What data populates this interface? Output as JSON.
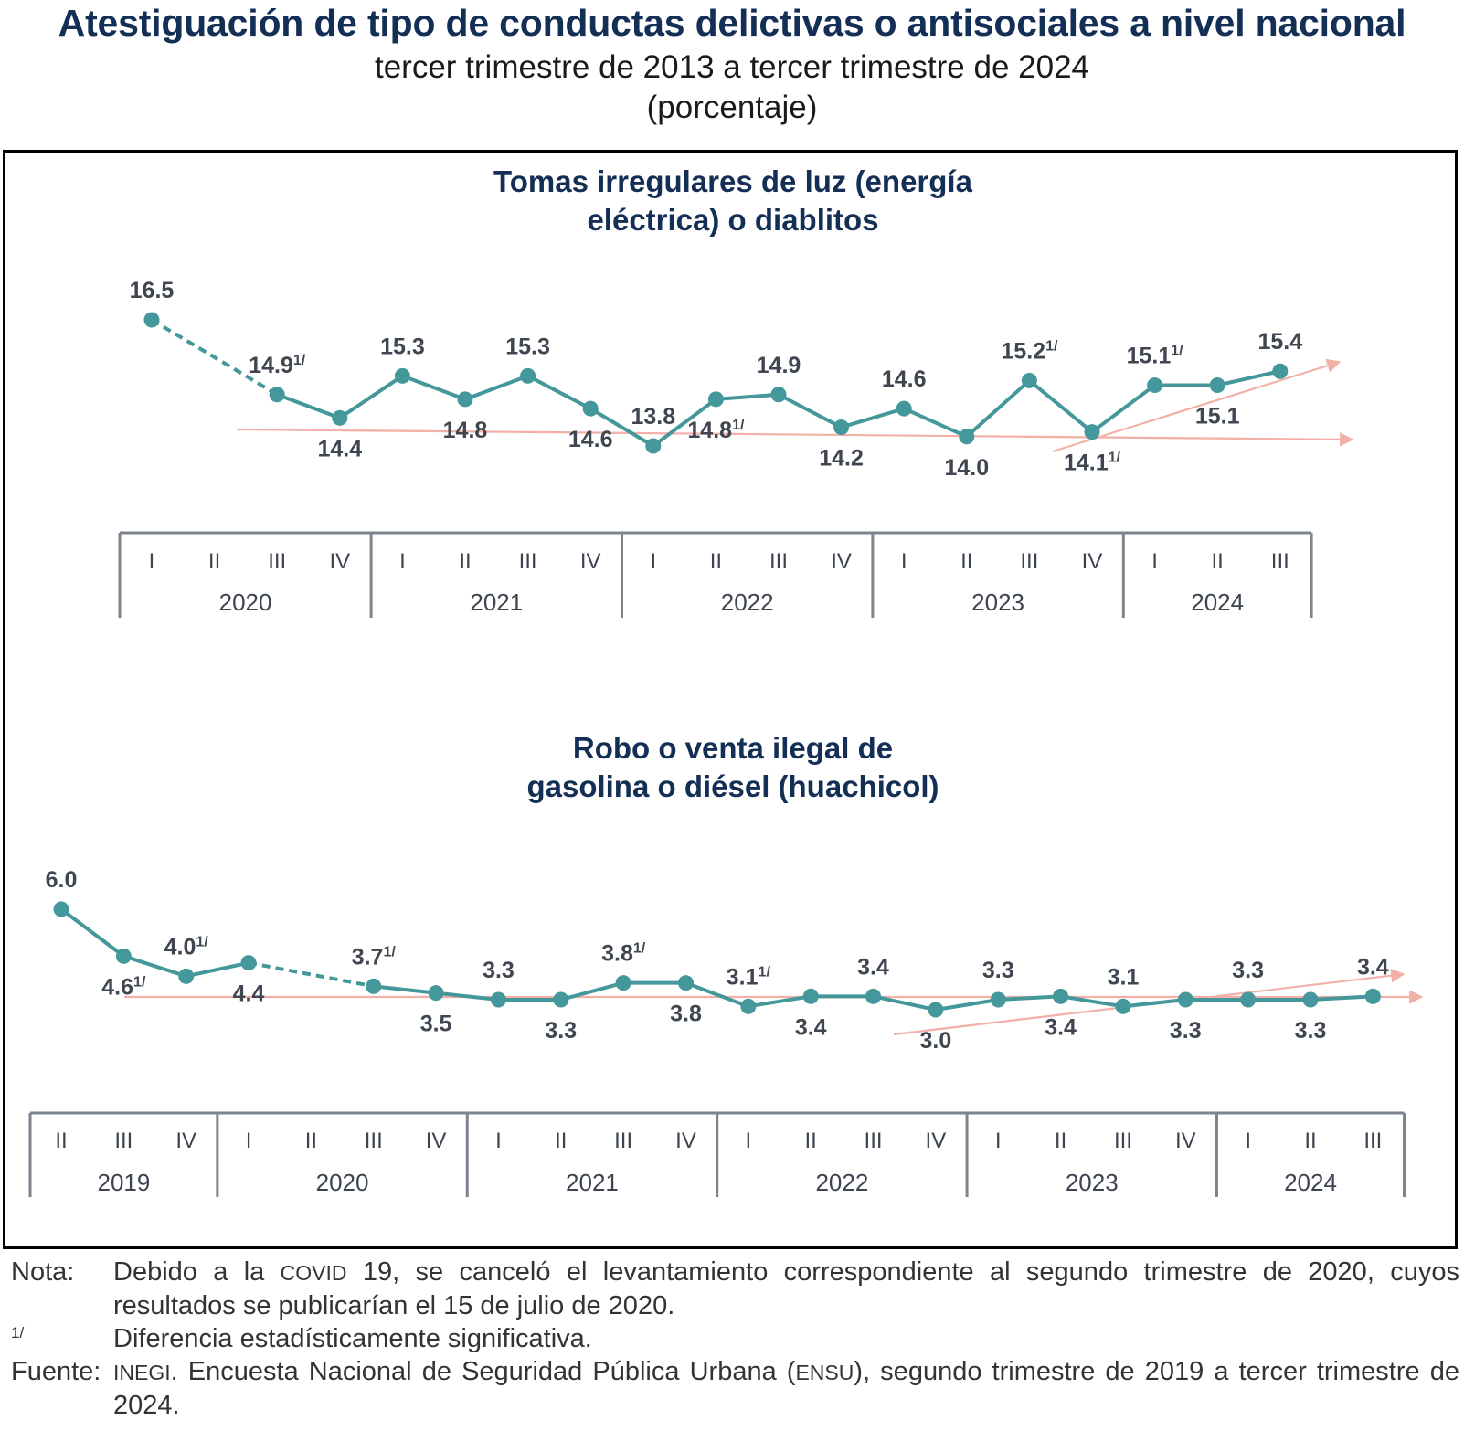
{
  "header": {
    "title": "Atestiguación de tipo de conductas delictivas o antisociales a nivel nacional",
    "subtitle": "tercer trimestre de 2013 a tercer trimestre de 2024",
    "unit": "(porcentaje)"
  },
  "colors": {
    "title": "#142f55",
    "series": "#44979a",
    "trend": "#f2b0a8",
    "label": "#3f4650",
    "axis": "#7c858e"
  },
  "chart_data": [
    {
      "type": "line",
      "title": "Tomas irregulares de luz (energía eléctrica) o diablitos",
      "title_lines": [
        "Tomas irregulares de luz (energía",
        "eléctrica) o diablitos"
      ],
      "xlabel": "",
      "ylabel": "porcentaje",
      "ylim": [
        13.5,
        17
      ],
      "grid": false,
      "legend": "none",
      "years": [
        {
          "label": "2020",
          "quarters": [
            "I",
            "II",
            "III",
            "IV"
          ]
        },
        {
          "label": "2021",
          "quarters": [
            "I",
            "II",
            "III",
            "IV"
          ]
        },
        {
          "label": "2022",
          "quarters": [
            "I",
            "II",
            "III",
            "IV"
          ]
        },
        {
          "label": "2023",
          "quarters": [
            "I",
            "II",
            "III",
            "IV"
          ]
        },
        {
          "label": "2024",
          "quarters": [
            "I",
            "II",
            "III"
          ]
        }
      ],
      "points": [
        {
          "x": "2020-I",
          "value": 16.5,
          "label": "16.5",
          "sig": false,
          "pos": "above"
        },
        {
          "x": "2020-II",
          "value": null
        },
        {
          "x": "2020-III",
          "value": 14.9,
          "label": "14.9",
          "sig": true,
          "pos": "above"
        },
        {
          "x": "2020-IV",
          "value": 14.4,
          "label": "14.4",
          "sig": false,
          "pos": "below"
        },
        {
          "x": "2021-I",
          "value": 15.3,
          "label": "15.3",
          "sig": false,
          "pos": "above"
        },
        {
          "x": "2021-II",
          "value": 14.8,
          "label": "14.8",
          "sig": false,
          "pos": "below"
        },
        {
          "x": "2021-III",
          "value": 15.3,
          "label": "15.3",
          "sig": false,
          "pos": "above"
        },
        {
          "x": "2021-IV",
          "value": 14.6,
          "label": "14.6",
          "sig": false,
          "pos": "below"
        },
        {
          "x": "2022-I",
          "value": 13.8,
          "label": "13.8",
          "sig": false,
          "pos": "above"
        },
        {
          "x": "2022-II",
          "value": 14.8,
          "label": "14.8",
          "sig": true,
          "pos": "below"
        },
        {
          "x": "2022-III",
          "value": 14.9,
          "label": "14.9",
          "sig": false,
          "pos": "above"
        },
        {
          "x": "2022-IV",
          "value": 14.2,
          "label": "14.2",
          "sig": false,
          "pos": "below"
        },
        {
          "x": "2023-I",
          "value": 14.6,
          "label": "14.6",
          "sig": false,
          "pos": "above"
        },
        {
          "x": "2023-II",
          "value": 14.0,
          "label": "14.0",
          "sig": false,
          "pos": "below"
        },
        {
          "x": "2023-III",
          "value": 15.2,
          "label": "15.2",
          "sig": true,
          "pos": "above"
        },
        {
          "x": "2023-IV",
          "value": 14.1,
          "label": "14.1",
          "sig": true,
          "pos": "below"
        },
        {
          "x": "2024-I",
          "value": 15.1,
          "label": "15.1",
          "sig": true,
          "pos": "above"
        },
        {
          "x": "2024-II",
          "value": 15.1,
          "label": "15.1",
          "sig": false,
          "pos": "below"
        },
        {
          "x": "2024-III",
          "value": 15.4,
          "label": "15.4",
          "sig": false,
          "pos": "above"
        }
      ],
      "gap_dashed": [
        "2020-I",
        "2020-III"
      ],
      "trend_arrows": [
        {
          "from": [
            "2021-IV-0.5",
            14.7
          ],
          "to": [
            "end",
            14.1
          ],
          "desc": "flat trend from 2020-III to 2024"
        },
        {
          "from": [
            "2023-IV",
            14.0
          ],
          "to": [
            "end",
            15.4
          ],
          "desc": "rising trend from 2023-IV"
        }
      ]
    },
    {
      "type": "line",
      "title": "Robo o venta ilegal de gasolina o diésel (huachicol)",
      "title_lines": [
        "Robo o venta ilegal de",
        "gasolina o diésel (huachicol)"
      ],
      "xlabel": "",
      "ylabel": "porcentaje",
      "ylim": [
        2.5,
        6.5
      ],
      "grid": false,
      "legend": "none",
      "years": [
        {
          "label": "2019",
          "quarters": [
            "II",
            "III",
            "IV"
          ]
        },
        {
          "label": "2020",
          "quarters": [
            "I",
            "II",
            "III",
            "IV"
          ]
        },
        {
          "label": "2021",
          "quarters": [
            "I",
            "II",
            "III",
            "IV"
          ]
        },
        {
          "label": "2022",
          "quarters": [
            "I",
            "II",
            "III",
            "IV"
          ]
        },
        {
          "label": "2023",
          "quarters": [
            "I",
            "II",
            "III",
            "IV"
          ]
        },
        {
          "label": "2024",
          "quarters": [
            "I",
            "II",
            "III"
          ]
        }
      ],
      "points": [
        {
          "x": "2019-II",
          "value": 6.0,
          "label": "6.0",
          "sig": false,
          "pos": "above"
        },
        {
          "x": "2019-III",
          "value": 4.6,
          "label": "4.6",
          "sig": true,
          "pos": "below"
        },
        {
          "x": "2019-IV",
          "value": 4.0,
          "label": "4.0",
          "sig": true,
          "pos": "above"
        },
        {
          "x": "2020-I",
          "value": 4.4,
          "label": "4.4",
          "sig": false,
          "pos": "below"
        },
        {
          "x": "2020-II",
          "value": null
        },
        {
          "x": "2020-III",
          "value": 3.7,
          "label": "3.7",
          "sig": true,
          "pos": "above"
        },
        {
          "x": "2020-IV",
          "value": 3.5,
          "label": "3.5",
          "sig": false,
          "pos": "below"
        },
        {
          "x": "2021-I",
          "value": 3.3,
          "label": "3.3",
          "sig": false,
          "pos": "above"
        },
        {
          "x": "2021-II",
          "value": 3.3,
          "label": "3.3",
          "sig": false,
          "pos": "below"
        },
        {
          "x": "2021-III",
          "value": 3.8,
          "label": "3.8",
          "sig": true,
          "pos": "above"
        },
        {
          "x": "2021-IV",
          "value": 3.8,
          "label": "3.8",
          "sig": false,
          "pos": "below"
        },
        {
          "x": "2022-I",
          "value": 3.1,
          "label": "3.1",
          "sig": true,
          "pos": "above"
        },
        {
          "x": "2022-II",
          "value": 3.4,
          "label": "3.4",
          "sig": false,
          "pos": "below"
        },
        {
          "x": "2022-III",
          "value": 3.4,
          "label": "3.4",
          "sig": false,
          "pos": "above"
        },
        {
          "x": "2022-IV",
          "value": 3.0,
          "label": "3.0",
          "sig": false,
          "pos": "below"
        },
        {
          "x": "2023-I",
          "value": 3.3,
          "label": "3.3",
          "sig": false,
          "pos": "above"
        },
        {
          "x": "2023-II",
          "value": 3.4,
          "label": "3.4",
          "sig": false,
          "pos": "below"
        },
        {
          "x": "2023-III",
          "value": 3.1,
          "label": "3.1",
          "sig": false,
          "pos": "above"
        },
        {
          "x": "2023-IV",
          "value": 3.3,
          "label": "3.3",
          "sig": false,
          "pos": "below"
        },
        {
          "x": "2024-I",
          "value": 3.3,
          "label": "3.3",
          "sig": false,
          "pos": "above"
        },
        {
          "x": "2024-II",
          "value": 3.3,
          "label": "3.3",
          "sig": false,
          "pos": "below"
        },
        {
          "x": "2024-III",
          "value": 3.4,
          "label": "3.4",
          "sig": false,
          "pos": "above"
        }
      ],
      "gap_dashed": [
        "2020-I",
        "2020-III"
      ],
      "trend_arrows": [
        {
          "desc": "flat trend from 2019-III to 2024"
        },
        {
          "desc": "rising trend from 2022-IV"
        }
      ]
    }
  ],
  "footnotes": {
    "nota_label": "Nota:",
    "nota_pre": "Debido a la ",
    "nota_sc": "COVID",
    "nota_post": " 19, se canceló el levantamiento correspondiente al segundo trimestre de 2020, cuyos resultados se publicarían el 15 de julio de 2020.",
    "sig_mark": "1/",
    "sig_text": "Diferencia estadísticamente significativa.",
    "fuente_label": "Fuente:",
    "fuente_sc1": "INEGI",
    "fuente_mid": ". Encuesta Nacional de Seguridad Pública Urbana (",
    "fuente_sc2": "ENSU",
    "fuente_post": "), segundo trimestre de 2019 a tercer trimestre de 2024."
  }
}
